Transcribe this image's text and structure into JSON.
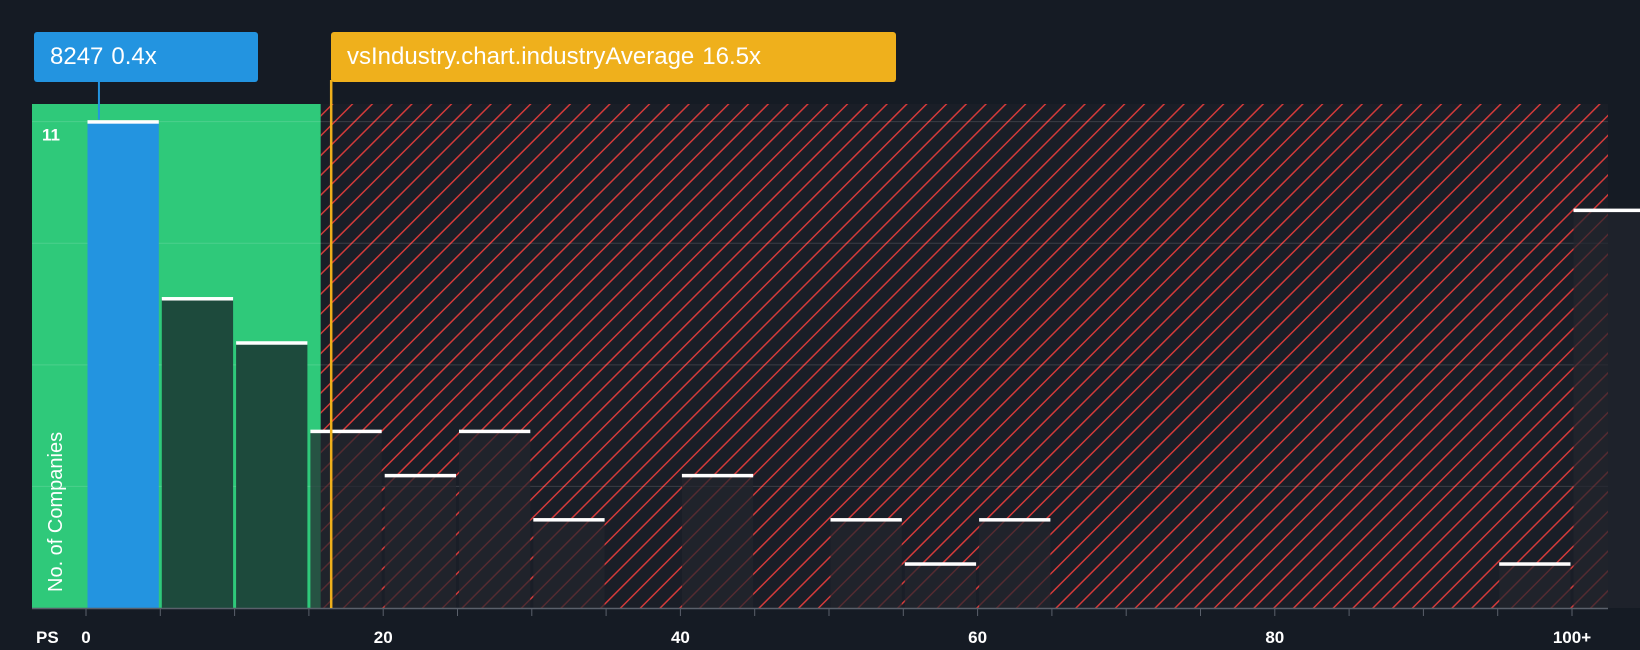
{
  "colors": {
    "background": "#151b24",
    "fair_zone": "#2fc97a",
    "overvalued_zone": "#d23a3a",
    "company_bar": "#2394e0",
    "industry_marker": "#efb01c",
    "bar_cap": "#ffffff",
    "axis_text": "#ffffff"
  },
  "company": {
    "ticker": "8247",
    "value_label": "0.4x",
    "ps": 0.4
  },
  "industry": {
    "label": "vsIndustry.chart.industryAverage",
    "value_label": "16.5x",
    "ps": 16.5
  },
  "chart_data": {
    "type": "bar",
    "title": "",
    "xlabel": "PS",
    "ylabel": "No. of Companies",
    "xlim": [
      0,
      102
    ],
    "ylim": [
      0,
      11.4
    ],
    "x_ticks": [
      0,
      20,
      40,
      60,
      80,
      100
    ],
    "x_tick_labels": [
      "0",
      "20",
      "40",
      "60",
      "80",
      "100+"
    ],
    "y_ticks": [
      11
    ],
    "y_tick_labels": [
      "11"
    ],
    "grid": true,
    "bin_width": 5,
    "fair_value_upper": 15.8,
    "bins": [
      {
        "start": 0,
        "count": 11,
        "highlight": true
      },
      {
        "start": 5,
        "count": 7
      },
      {
        "start": 10,
        "count": 6
      },
      {
        "start": 15,
        "count": 4
      },
      {
        "start": 20,
        "count": 3
      },
      {
        "start": 25,
        "count": 4
      },
      {
        "start": 30,
        "count": 2
      },
      {
        "start": 35,
        "count": 0
      },
      {
        "start": 40,
        "count": 3
      },
      {
        "start": 45,
        "count": 0
      },
      {
        "start": 50,
        "count": 2
      },
      {
        "start": 55,
        "count": 1
      },
      {
        "start": 60,
        "count": 2
      },
      {
        "start": 65,
        "count": 0
      },
      {
        "start": 70,
        "count": 0
      },
      {
        "start": 75,
        "count": 0
      },
      {
        "start": 80,
        "count": 0
      },
      {
        "start": 85,
        "count": 0
      },
      {
        "start": 90,
        "count": 0
      },
      {
        "start": 95,
        "count": 1
      },
      {
        "start": 100,
        "count": 9
      }
    ]
  }
}
